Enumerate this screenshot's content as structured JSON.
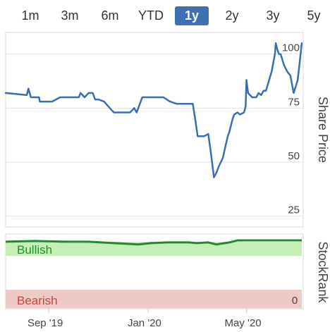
{
  "range_tabs": [
    "1m",
    "3m",
    "6m",
    "YTD",
    "1y",
    "2y",
    "3y",
    "5y"
  ],
  "active_tab": "1y",
  "colors": {
    "price_line": "#3b6db3",
    "rank_line": "#1f8a2e",
    "bullish_fill": "#c6efb8",
    "bearish_fill": "#efc9c6",
    "bullish_text": "#2a8a2a",
    "bearish_text": "#c9443a",
    "accent": "#3f6fb3"
  },
  "chart_data": [
    {
      "type": "line",
      "ylabel": "Share Price",
      "ylim": [
        20,
        110
      ],
      "yticks": [
        25,
        50,
        75,
        100
      ],
      "xticks": [
        "Sep '19",
        "Jan '20",
        "May '20"
      ],
      "xrange": [
        "2019-07-10",
        "2020-07-08"
      ],
      "tick_dates": [
        "2019-09-01",
        "2020-01-01",
        "2020-05-01"
      ],
      "series": [
        {
          "x": [
            "2019-07-10",
            "2019-08-05",
            "2019-08-07",
            "2019-08-10",
            "2019-08-20",
            "2019-08-21",
            "2019-09-05",
            "2019-09-15",
            "2019-10-08",
            "2019-10-10",
            "2019-10-15",
            "2019-10-20",
            "2019-10-25",
            "2019-10-28",
            "2019-11-01",
            "2019-11-08",
            "2019-11-15",
            "2019-11-20",
            "2019-11-23",
            "2019-12-10",
            "2019-12-15",
            "2019-12-18",
            "2019-12-25",
            "2020-01-05",
            "2020-01-20",
            "2020-01-28",
            "2020-02-05",
            "2020-02-12",
            "2020-02-25",
            "2020-02-28",
            "2020-03-02",
            "2020-03-10",
            "2020-03-15",
            "2020-03-18",
            "2020-03-22",
            "2020-03-25",
            "2020-03-28",
            "2020-04-02",
            "2020-04-05",
            "2020-04-08",
            "2020-04-10",
            "2020-04-14",
            "2020-04-16",
            "2020-04-20",
            "2020-04-23",
            "2020-04-28",
            "2020-04-30",
            "2020-05-01",
            "2020-05-03",
            "2020-05-08",
            "2020-05-13",
            "2020-05-16",
            "2020-05-19",
            "2020-05-22",
            "2020-05-25",
            "2020-06-01",
            "2020-06-05",
            "2020-06-06",
            "2020-06-08",
            "2020-06-10",
            "2020-06-12",
            "2020-06-16",
            "2020-06-20",
            "2020-06-24",
            "2020-06-28",
            "2020-07-03",
            "2020-07-08"
          ],
          "y": [
            82,
            81,
            84,
            80,
            80,
            78,
            78,
            80,
            80,
            82,
            80,
            82,
            82,
            79,
            79,
            78,
            75,
            73,
            73,
            73,
            75,
            73,
            80,
            80,
            80,
            78,
            77,
            77,
            77,
            70,
            62,
            62,
            63,
            55,
            43,
            45,
            48,
            52,
            57,
            62,
            64,
            70,
            72,
            73,
            72,
            73,
            76,
            88,
            82,
            80,
            80,
            82,
            81,
            83,
            83,
            92,
            100,
            105,
            102,
            100,
            100,
            95,
            92,
            90,
            82,
            88,
            105
          ]
        }
      ]
    },
    {
      "type": "line",
      "ylabel": "StockRank",
      "yticks": [
        0
      ],
      "bands": [
        "Bullish",
        "Bearish"
      ],
      "series": [
        {
          "x": [
            "2019-07-10",
            "2019-08-15",
            "2019-09-20",
            "2019-10-20",
            "2019-11-20",
            "2019-12-20",
            "2020-01-05",
            "2020-01-25",
            "2020-02-20",
            "2020-03-01",
            "2020-03-15",
            "2020-03-25",
            "2020-04-10",
            "2020-04-20",
            "2020-05-10",
            "2020-06-10",
            "2020-07-08"
          ],
          "y": [
            97,
            98,
            97,
            97,
            95,
            93,
            95,
            96,
            96,
            95,
            96,
            93,
            96,
            99,
            99,
            99,
            99
          ]
        }
      ]
    }
  ]
}
